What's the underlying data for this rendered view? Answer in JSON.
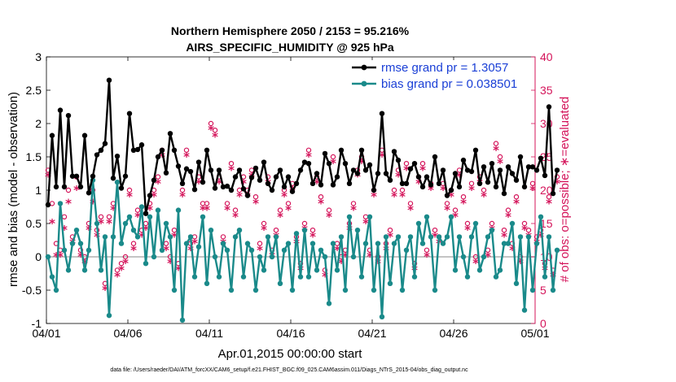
{
  "chart_data": {
    "type": "line",
    "title": "Northern Hemisphere 2050 / 2153 = 95.216%",
    "subtitle": "AIRS_SPECIFIC_HUMIDITY @ 925 hPa",
    "xlabel": "Apr.01,2015 00:00:00 start",
    "ylabel": "rmse and bias (model - observation)",
    "ylabel_right": "# of obs: o=possible; ∗=evaluated",
    "footnote": "data file: /Users/raeder/DAI/ATM_forcXX/CAM6_setup/f.e21.FHIST_BGC.f09_025.CAM6assim.011/Diags_NTrS_2015-04/obs_diag_output.nc",
    "x_ticks": [
      "04/01",
      "04/06",
      "04/11",
      "04/16",
      "04/21",
      "04/26",
      "05/01"
    ],
    "x_tick_days": [
      0,
      5,
      10,
      15,
      20,
      25,
      30
    ],
    "xlim": [
      0,
      30
    ],
    "ylim": [
      -1,
      3
    ],
    "y_ticks": [
      "-1",
      "-0.5",
      "0",
      "0.5",
      "1",
      "1.5",
      "2",
      "2.5",
      "3"
    ],
    "y_tick_values": [
      -1,
      -0.5,
      0,
      0.5,
      1,
      1.5,
      2,
      2.5,
      3
    ],
    "y2lim": [
      0,
      40
    ],
    "y2_ticks": [
      "0",
      "5",
      "10",
      "15",
      "20",
      "25",
      "30",
      "35",
      "40"
    ],
    "y2_tick_values": [
      0,
      5,
      10,
      15,
      20,
      25,
      30,
      35,
      40
    ],
    "zero_line": 0,
    "colors": {
      "rmse": "#000000",
      "bias": "#1a8a8a",
      "obs": "#d4145a",
      "zero": "#b0b0b0",
      "legend_text": "#1a3fd6"
    },
    "legend": [
      {
        "name": "rmse grand pr = 1.3057",
        "series": "rmse"
      },
      {
        "name": "bias grand pr = 0.038501",
        "series": "bias"
      }
    ],
    "legend_position": "top-right",
    "x_step_days": 0.25,
    "series": [
      {
        "name": "rmse",
        "values": [
          0.78,
          1.82,
          1.05,
          2.2,
          1.05,
          2.12,
          1.21,
          1.21,
          1.05,
          1.82,
          0.96,
          1.21,
          1.53,
          1.6,
          1.7,
          2.65,
          1.18,
          1.51,
          1.03,
          1.21,
          2.15,
          1.6,
          1.61,
          1.68,
          0.65,
          0.92,
          1.15,
          1.5,
          1.6,
          1.26,
          1.85,
          1.6,
          1.36,
          1.1,
          1.32,
          1.28,
          1.01,
          1.42,
          1.12,
          1.6,
          1.3,
          1.03,
          1.3,
          1.05,
          1.06,
          1.0,
          1.2,
          1.3,
          1.02,
          0.92,
          1.19,
          1.33,
          1.15,
          1.42,
          1.1,
          1.0,
          1.2,
          1.3,
          1.05,
          1.2,
          0.98,
          1.1,
          1.3,
          1.42,
          1.4,
          1.1,
          1.25,
          1.08,
          1.55,
          1.4,
          1.08,
          1.2,
          1.6,
          1.4,
          1.1,
          1.3,
          1.25,
          1.6,
          1.3,
          1.38,
          1.0,
          1.25,
          2.15,
          1.25,
          1.15,
          1.58,
          1.45,
          1.1,
          1.1,
          1.32,
          1.4,
          1.2,
          1.05,
          1.2,
          1.08,
          1.5,
          1.1,
          1.3,
          0.92,
          1.0,
          1.25,
          1.05,
          1.45,
          1.3,
          1.28,
          1.6,
          1.1,
          1.35,
          1.12,
          1.4,
          1.05,
          1.3,
          0.95,
          1.35,
          1.25,
          1.15,
          1.5,
          1.05,
          1.35,
          1.35,
          1.3,
          1.48,
          1.22,
          2.25,
          0.95,
          1.3
        ]
      },
      {
        "name": "bias",
        "values": [
          0.0,
          -0.3,
          -0.5,
          0.8,
          0.1,
          -0.2,
          0.2,
          0.4,
          0.2,
          -0.2,
          0.1,
          1.15,
          0.5,
          -0.2,
          0.3,
          -0.88,
          0.3,
          1.12,
          0.2,
          0.5,
          0.6,
          0.4,
          0.3,
          0.75,
          -0.1,
          0.6,
          0.0,
          0.7,
          0.1,
          0.5,
          0.3,
          -0.5,
          0.7,
          -0.95,
          0.2,
          0.3,
          -0.3,
          0.15,
          0.6,
          -0.4,
          0.4,
          0.0,
          -0.3,
          0.2,
          0.1,
          -0.5,
          0.3,
          0.4,
          -0.3,
          0.2,
          0.1,
          -0.5,
          0.0,
          -0.2,
          0.3,
          0.0,
          0.3,
          -0.4,
          0.1,
          0.2,
          -0.5,
          0.35,
          -0.3,
          0.4,
          -0.3,
          0.2,
          -0.2,
          0.1,
          0.0,
          -0.7,
          0.2,
          -0.2,
          0.3,
          -0.5,
          0.6,
          0.0,
          0.4,
          -0.3,
          0.2,
          0.6,
          -0.5,
          0.2,
          -0.9,
          0.3,
          -0.4,
          0.2,
          0.3,
          -0.5,
          0.1,
          0.3,
          -0.3,
          0.5,
          0.2,
          0.6,
          0.3,
          -0.5,
          0.3,
          0.2,
          0.3,
          0.6,
          -0.2,
          0.3,
          0.0,
          -0.3,
          0.3,
          0.5,
          -0.2,
          0.0,
          0.3,
          0.4,
          -0.3,
          -0.2,
          0.2,
          0.2,
          0.5,
          -0.4,
          0.3,
          -0.8,
          0.3,
          -0.5,
          0.2,
          0.6,
          -0.3,
          0.3,
          -0.5,
          0.1
        ]
      },
      {
        "name": "obs_possible",
        "values": [
          23,
          18,
          12,
          11,
          16,
          20,
          13,
          22,
          11,
          10,
          15,
          20,
          14,
          16,
          6,
          16,
          18,
          8,
          9,
          10,
          20,
          12,
          17,
          14,
          15,
          18,
          20,
          22,
          26,
          12,
          10,
          14,
          9,
          20,
          26,
          12,
          13,
          22,
          18,
          18,
          30,
          29,
          22,
          13,
          18,
          24,
          17,
          20,
          22,
          20,
          23,
          19,
          12,
          15,
          22,
          11,
          14,
          17,
          20,
          18,
          21,
          13,
          9,
          15,
          26,
          14,
          22,
          19,
          8,
          17,
          25,
          12,
          10,
          11,
          15,
          18,
          23,
          25,
          16,
          11,
          20,
          10,
          26,
          12,
          14,
          20,
          23,
          20,
          24,
          18,
          9,
          22,
          24,
          11,
          21,
          14,
          13,
          21,
          18,
          20,
          17,
          23,
          19,
          15,
          21,
          10,
          22,
          20,
          11,
          15,
          27,
          25,
          14,
          17,
          12,
          19,
          10,
          15,
          14,
          21,
          13,
          14,
          9,
          19,
          8,
          22
        ]
      },
      {
        "name": "obs_evaluated",
        "values": [
          22,
          15,
          10,
          10,
          14,
          18,
          12,
          20,
          10,
          9,
          14,
          18,
          13,
          15,
          5,
          15,
          17,
          7,
          8,
          9,
          19,
          11,
          16,
          13,
          14,
          17,
          19,
          21,
          25,
          11,
          9,
          13,
          8,
          19,
          25,
          11,
          12,
          21,
          17,
          17,
          29,
          28,
          21,
          12,
          17,
          23,
          16,
          19,
          21,
          19,
          22,
          18,
          11,
          14,
          21,
          10,
          13,
          16,
          19,
          17,
          20,
          12,
          8,
          14,
          25,
          13,
          21,
          18,
          7,
          16,
          24,
          11,
          9,
          10,
          14,
          17,
          22,
          24,
          15,
          10,
          19,
          9,
          25,
          11,
          13,
          19,
          22,
          19,
          23,
          17,
          8,
          21,
          23,
          10,
          20,
          13,
          12,
          20,
          17,
          19,
          16,
          22,
          18,
          14,
          20,
          9,
          21,
          19,
          10,
          14,
          26,
          24,
          13,
          16,
          11,
          18,
          9,
          14,
          13,
          20,
          12,
          13,
          8,
          18,
          7,
          21
        ]
      }
    ]
  }
}
